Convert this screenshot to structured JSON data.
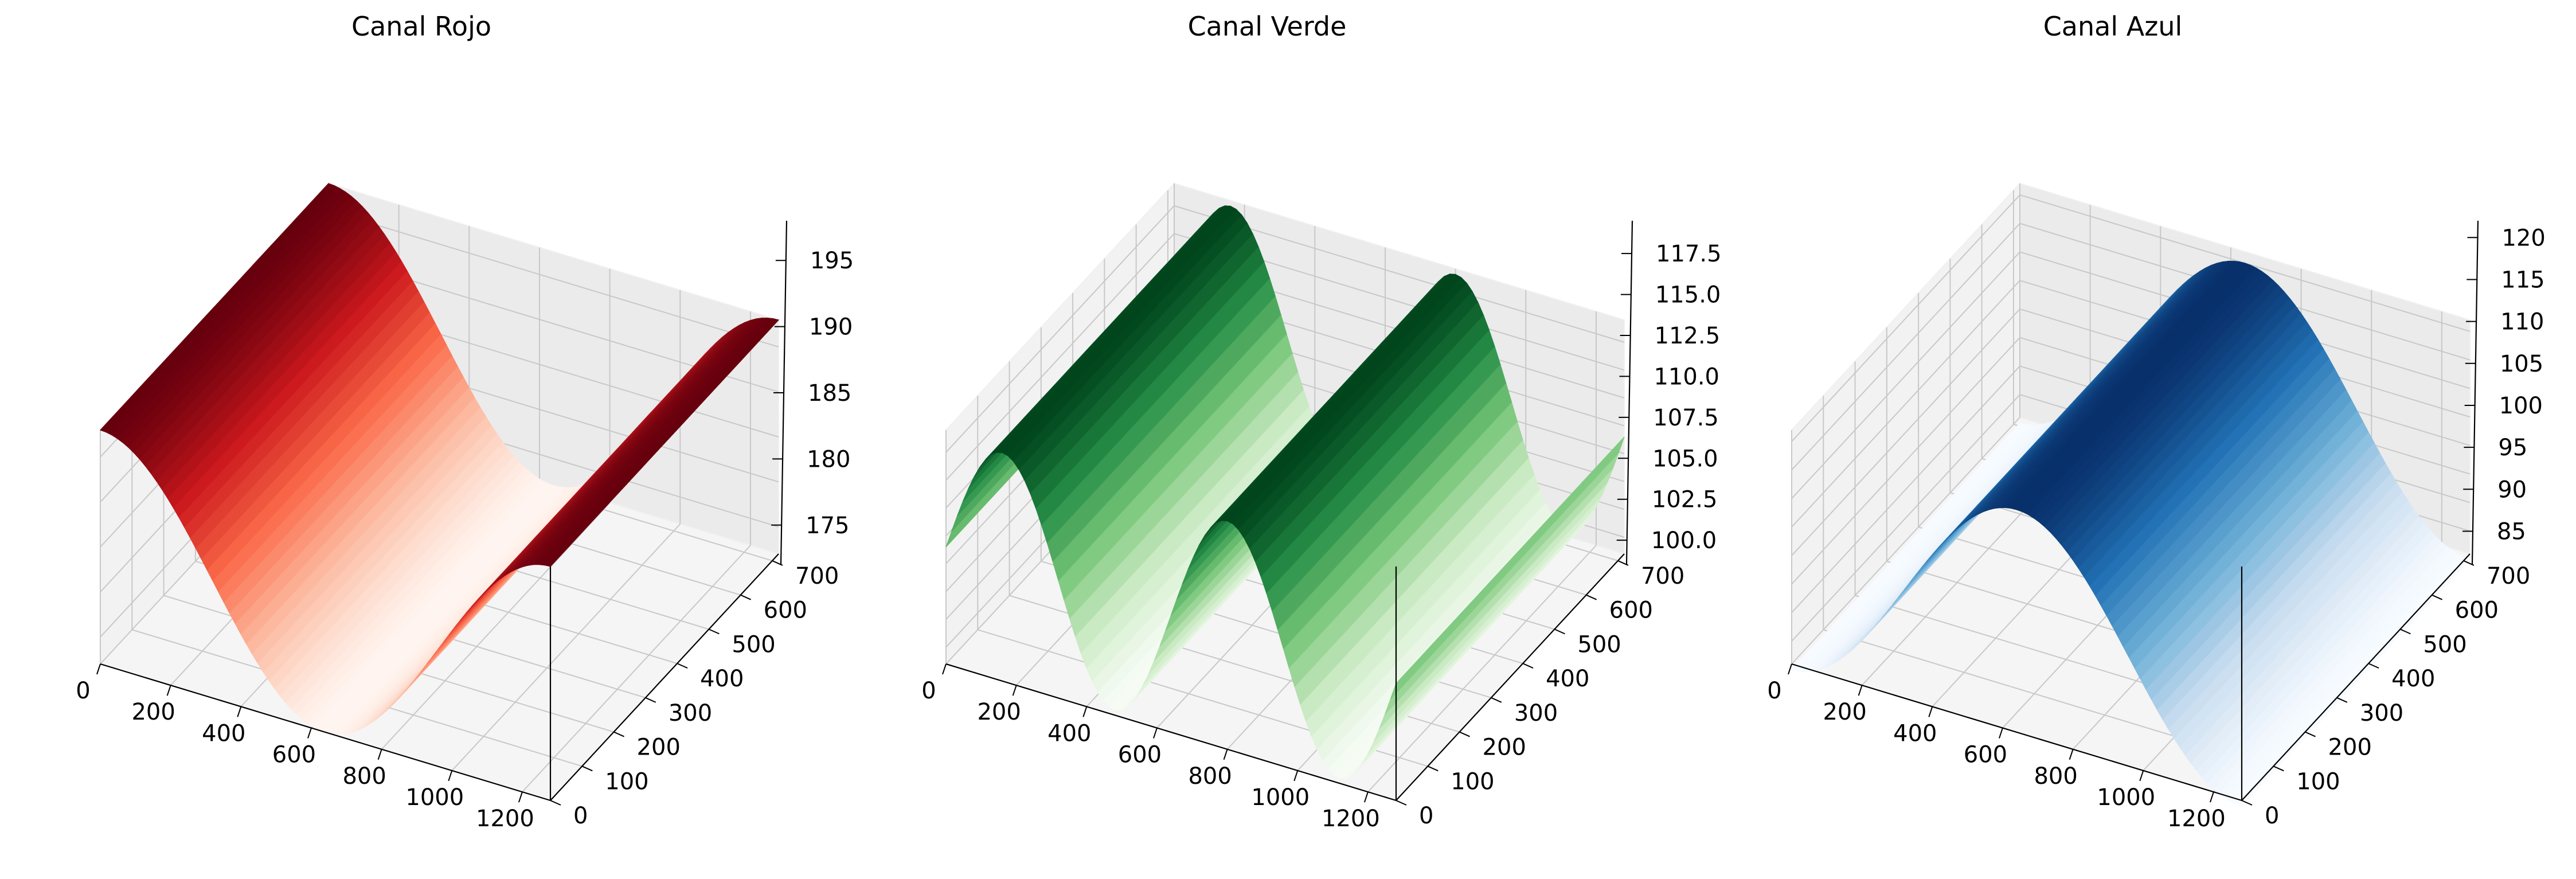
{
  "chart_data": [
    {
      "type": "surface",
      "title": "Canal Rojo",
      "colormap": "Reds",
      "colors": [
        "#fff5f0",
        "#fcbba1",
        "#fb6a4a",
        "#cb181d",
        "#67000d"
      ],
      "x_ticks": [
        0,
        200,
        400,
        600,
        800,
        1000,
        1200
      ],
      "y_ticks": [
        0,
        100,
        200,
        300,
        400,
        500,
        600,
        700
      ],
      "z_ticks": [
        175,
        180,
        185,
        190,
        195
      ],
      "z_tick_labels": [
        "175",
        "180",
        "185",
        "190",
        "195"
      ],
      "x_range": [
        0,
        1280
      ],
      "y_range": [
        0,
        720
      ],
      "z_range": [
        172,
        198
      ],
      "surface": {
        "function": "cosine_along_x",
        "mean": 185,
        "amplitude": 13,
        "cycles": 1,
        "phase_deg": 0
      },
      "grid": true
    },
    {
      "type": "surface",
      "title": "Canal Verde",
      "colormap": "Greens",
      "colors": [
        "#f7fcf5",
        "#c7e9c0",
        "#74c476",
        "#238b45",
        "#00441b"
      ],
      "x_ticks": [
        0,
        200,
        400,
        600,
        800,
        1000,
        1200
      ],
      "y_ticks": [
        0,
        100,
        200,
        300,
        400,
        500,
        600,
        700
      ],
      "z_ticks": [
        100.0,
        102.5,
        105.0,
        107.5,
        110.0,
        112.5,
        115.0,
        117.5
      ],
      "z_tick_labels": [
        "100.0",
        "102.5",
        "105.0",
        "107.5",
        "110.0",
        "112.5",
        "115.0",
        "117.5"
      ],
      "x_range": [
        0,
        1280
      ],
      "y_range": [
        0,
        720
      ],
      "z_range": [
        98.5,
        119.5
      ],
      "surface": {
        "function": "sine_along_x",
        "mean": 109,
        "amplitude": 10,
        "cycles": 2,
        "phase_deg": 0
      },
      "grid": true
    },
    {
      "type": "surface",
      "title": "Canal Azul",
      "colormap": "Blues",
      "colors": [
        "#f7fbff",
        "#c6dbef",
        "#6baed6",
        "#2171b5",
        "#08306b"
      ],
      "x_ticks": [
        0,
        200,
        400,
        600,
        800,
        1000,
        1200
      ],
      "y_ticks": [
        0,
        100,
        200,
        300,
        400,
        500,
        600,
        700
      ],
      "z_ticks": [
        85,
        90,
        95,
        100,
        105,
        110,
        115,
        120
      ],
      "z_tick_labels": [
        "85",
        "90",
        "95",
        "100",
        "105",
        "110",
        "115",
        "120"
      ],
      "x_range": [
        0,
        1280
      ],
      "y_range": [
        0,
        720
      ],
      "z_range": [
        81,
        122
      ],
      "surface": {
        "function": "negative_cosine_along_x",
        "mean": 100,
        "amplitude": 20,
        "cycles": 1,
        "phase_deg": 0
      },
      "grid": true
    }
  ]
}
